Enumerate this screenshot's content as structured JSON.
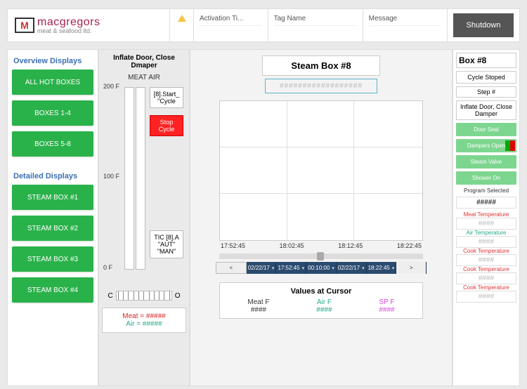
{
  "brand": {
    "main": "macgregors",
    "sub": "meat & seafood ltd."
  },
  "alarms": {
    "cols": [
      "Activation Ti...",
      "Tag Name",
      "Message"
    ]
  },
  "shutdown_label": "Shutdown",
  "nav": {
    "overview_hdr": "Overview Displays",
    "overview": [
      "ALL HOT BOXES",
      "BOXES 1-4",
      "BOXES 5-8"
    ],
    "detailed_hdr": "Detailed Displays",
    "detailed": [
      "STEAM BOX #1",
      "STEAM BOX #2",
      "STEAM BOX #3",
      "STEAM BOX #4"
    ]
  },
  "gauge": {
    "title": "Inflate Door, Close Dmaper",
    "bars_label": "MEAT AIR",
    "axis": {
      "max": "200 F",
      "mid": "100 F",
      "min": "0 F"
    },
    "start_label": "[8].Start_ \"Cycle",
    "stop_label": "Stop Cycle",
    "tic_label": "TIC [8].A \"AUT\" \"MAN\"",
    "hgauge": {
      "left": "C",
      "right": "O"
    },
    "readout_meat": "Meat = #####",
    "readout_air": "Air = #####"
  },
  "main": {
    "title": "Steam Box #8",
    "hash": "##################",
    "xticks": [
      "17:52:45",
      "18:02:45",
      "18:12:45",
      "18:22:45"
    ],
    "timebar": [
      "<",
      "02/22/17",
      "17:52:45",
      "00:10:00",
      "02/22/17",
      "18:22:45",
      ">"
    ],
    "values_title": "Values at Cursor",
    "vcols": {
      "meat": {
        "h": "Meat F",
        "v": "####"
      },
      "air": {
        "h": "Air F",
        "v": "####"
      },
      "sp": {
        "h": "SP F",
        "v": "####"
      }
    }
  },
  "right": {
    "title": "Box #8",
    "cycle": "Cycle Stoped",
    "step_h": "Step #",
    "step_v": "Inflate Door, Close Damper",
    "buttons": [
      "Door Seal",
      "Dampers Open",
      "Steam Valve",
      "Shower On"
    ],
    "prog_h": "Program Selected",
    "prog_v": "#####",
    "temps": [
      {
        "l": "Meat Temperature",
        "c": "r"
      },
      {
        "l": "Air Temperature",
        "c": "g"
      },
      {
        "l": "Cook Temperature",
        "c": "r"
      },
      {
        "l": "Cook Temperature",
        "c": "r"
      },
      {
        "l": "Cook Temperature",
        "c": "r"
      }
    ],
    "temp_v": "####"
  },
  "colors": {
    "nav_green": "#2ab24a",
    "stop_red": "#f22",
    "brand": "#a7224a",
    "right_btn": "#7dd68f",
    "timebar": "#2b4a6f"
  }
}
